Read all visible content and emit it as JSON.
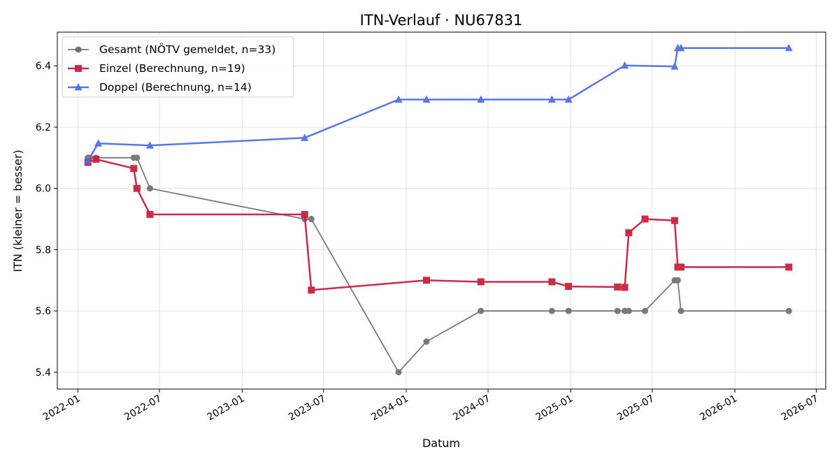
{
  "chart_data": {
    "type": "line",
    "title": "ITN-Verlauf · NU67831",
    "xlabel": "Datum",
    "ylabel": "ITN  (kleiner = besser)",
    "x_axis_type": "date",
    "xlim": [
      "2021-11-16",
      "2026-07-22"
    ],
    "ylim": [
      5.345,
      6.51
    ],
    "x_ticks": [
      "2022-01-01",
      "2022-07-01",
      "2023-01-01",
      "2023-07-01",
      "2024-01-01",
      "2024-07-01",
      "2025-01-01",
      "2025-07-01",
      "2026-01-01",
      "2026-07-01"
    ],
    "x_tick_labels": [
      "2022-01",
      "2022-07",
      "2023-01",
      "2023-07",
      "2024-01",
      "2024-07",
      "2025-01",
      "2025-07",
      "2026-01",
      "2026-07"
    ],
    "y_ticks": [
      5.4,
      5.6,
      5.8,
      6.0,
      6.2,
      6.4
    ],
    "y_tick_labels": [
      "5.4",
      "5.6",
      "5.8",
      "6.0",
      "6.2",
      "6.4"
    ],
    "grid": true,
    "legend_position": "top-left",
    "series": [
      {
        "name": "Gesamt (NÖTV gemeldet, n=33)",
        "color": "#555555",
        "marker": "circle",
        "points": [
          [
            "2022-01-23",
            6.1
          ],
          [
            "2022-01-26",
            6.1
          ],
          [
            "2022-02-10",
            6.1
          ],
          [
            "2022-05-05",
            6.1
          ],
          [
            "2022-05-12",
            6.1
          ],
          [
            "2022-06-10",
            6.0
          ],
          [
            "2023-05-20",
            5.9
          ],
          [
            "2023-06-04",
            5.9
          ],
          [
            "2023-12-15",
            5.4
          ],
          [
            "2024-02-15",
            5.5
          ],
          [
            "2024-06-15",
            5.6
          ],
          [
            "2024-11-20",
            5.6
          ],
          [
            "2024-12-27",
            5.6
          ],
          [
            "2025-04-15",
            5.6
          ],
          [
            "2025-05-01",
            5.6
          ],
          [
            "2025-05-10",
            5.6
          ],
          [
            "2025-06-15",
            5.6
          ],
          [
            "2025-08-20",
            5.7
          ],
          [
            "2025-08-27",
            5.7
          ],
          [
            "2025-09-03",
            5.6
          ],
          [
            "2026-05-01",
            5.6
          ]
        ]
      },
      {
        "name": "Einzel (Berechnung, n=19)",
        "color": "#c8213f",
        "marker": "square",
        "points": [
          [
            "2022-01-23",
            6.085
          ],
          [
            "2022-02-10",
            6.095
          ],
          [
            "2022-05-05",
            6.065
          ],
          [
            "2022-05-12",
            6.0
          ],
          [
            "2022-06-10",
            5.915
          ],
          [
            "2023-05-20",
            5.915
          ],
          [
            "2023-06-04",
            5.668
          ],
          [
            "2024-02-15",
            5.7
          ],
          [
            "2024-06-15",
            5.695
          ],
          [
            "2024-11-20",
            5.695
          ],
          [
            "2024-12-27",
            5.68
          ],
          [
            "2025-04-15",
            5.678
          ],
          [
            "2025-05-01",
            5.677
          ],
          [
            "2025-05-10",
            5.855
          ],
          [
            "2025-06-15",
            5.9
          ],
          [
            "2025-08-20",
            5.895
          ],
          [
            "2025-08-27",
            5.743
          ],
          [
            "2025-09-03",
            5.743
          ],
          [
            "2026-05-01",
            5.743
          ]
        ]
      },
      {
        "name": "Doppel (Berechnung, n=14)",
        "color": "#4f70e6",
        "marker": "triangle",
        "points": [
          [
            "2022-01-23",
            6.09
          ],
          [
            "2022-02-15",
            6.147
          ],
          [
            "2022-06-10",
            6.14
          ],
          [
            "2023-05-20",
            6.165
          ],
          [
            "2023-12-15",
            6.29
          ],
          [
            "2024-02-15",
            6.29
          ],
          [
            "2024-06-15",
            6.29
          ],
          [
            "2024-11-20",
            6.29
          ],
          [
            "2024-12-27",
            6.29
          ],
          [
            "2025-05-01",
            6.401
          ],
          [
            "2025-08-20",
            6.398
          ],
          [
            "2025-08-27",
            6.458
          ],
          [
            "2025-09-03",
            6.458
          ],
          [
            "2026-05-01",
            6.458
          ]
        ]
      }
    ]
  }
}
